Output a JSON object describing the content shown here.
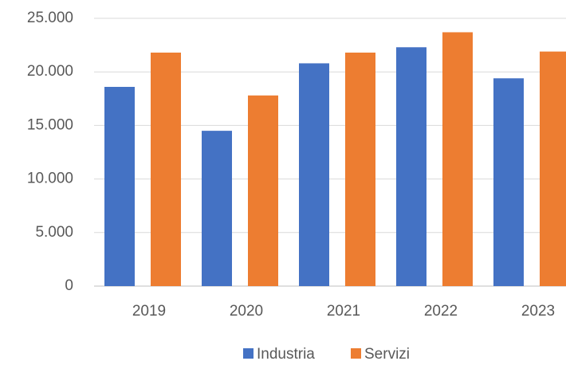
{
  "chart_data": {
    "type": "bar",
    "categories": [
      "2019",
      "2020",
      "2021",
      "2022",
      "2023"
    ],
    "series": [
      {
        "name": "Industria",
        "color": "#4472c4",
        "values": [
          18600,
          14500,
          20800,
          22300,
          19400
        ]
      },
      {
        "name": "Servizi",
        "color": "#ed7d31",
        "values": [
          21800,
          17800,
          21800,
          23700,
          21900
        ]
      }
    ],
    "ylim": [
      0,
      25000
    ],
    "yticks": [
      0,
      {
        "value": 5000,
        "label": "5.000"
      },
      {
        "value": 10000,
        "label": "10.000"
      },
      {
        "value": 15000,
        "label": "15.000"
      },
      {
        "value": 20000,
        "label": "20.000"
      },
      {
        "value": 25000,
        "label": "25.000"
      }
    ],
    "grid": true,
    "legend": "bottom"
  }
}
